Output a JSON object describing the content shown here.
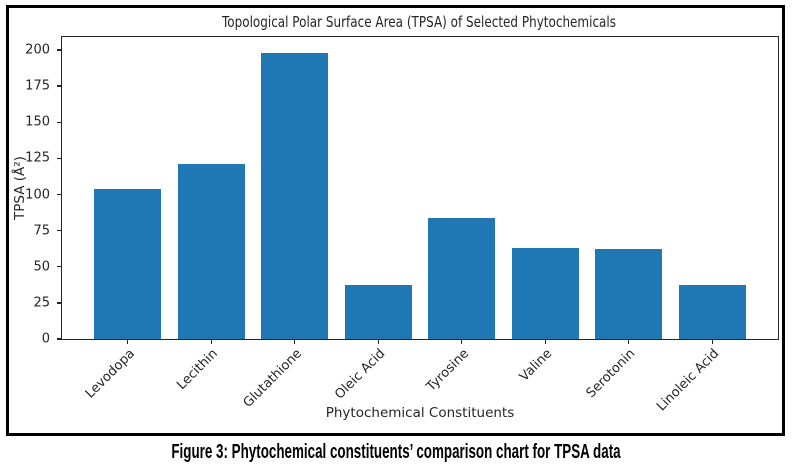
{
  "figure": {
    "caption": "Figure 3: Phytochemical constituents’ comparison chart for TPSA data"
  },
  "chart_data": {
    "type": "bar",
    "title": "Topological Polar Surface Area (TPSA) of Selected Phytochemicals",
    "xlabel": "Phytochemical Constituents",
    "ylabel": "TPSA (Å²)",
    "categories": [
      "Levodopa",
      "Lecithin",
      "Glutathione",
      "Oleic Acid",
      "Tyrosine",
      "Valine",
      "Serotonin",
      "Linoleic Acid"
    ],
    "values": [
      103.8,
      121.0,
      197.6,
      37.3,
      83.6,
      63.3,
      62.0,
      37.3
    ],
    "yticks": [
      0,
      25,
      50,
      75,
      100,
      125,
      150,
      175,
      200
    ],
    "ylim": [
      0,
      209
    ],
    "x_tick_rotation_deg": 45,
    "bar_color": "#1f77b4",
    "grid": false,
    "legend_position": "none",
    "frame_border_color": "#000000",
    "axes_border_color": "#242424",
    "text_color": "#262626"
  }
}
